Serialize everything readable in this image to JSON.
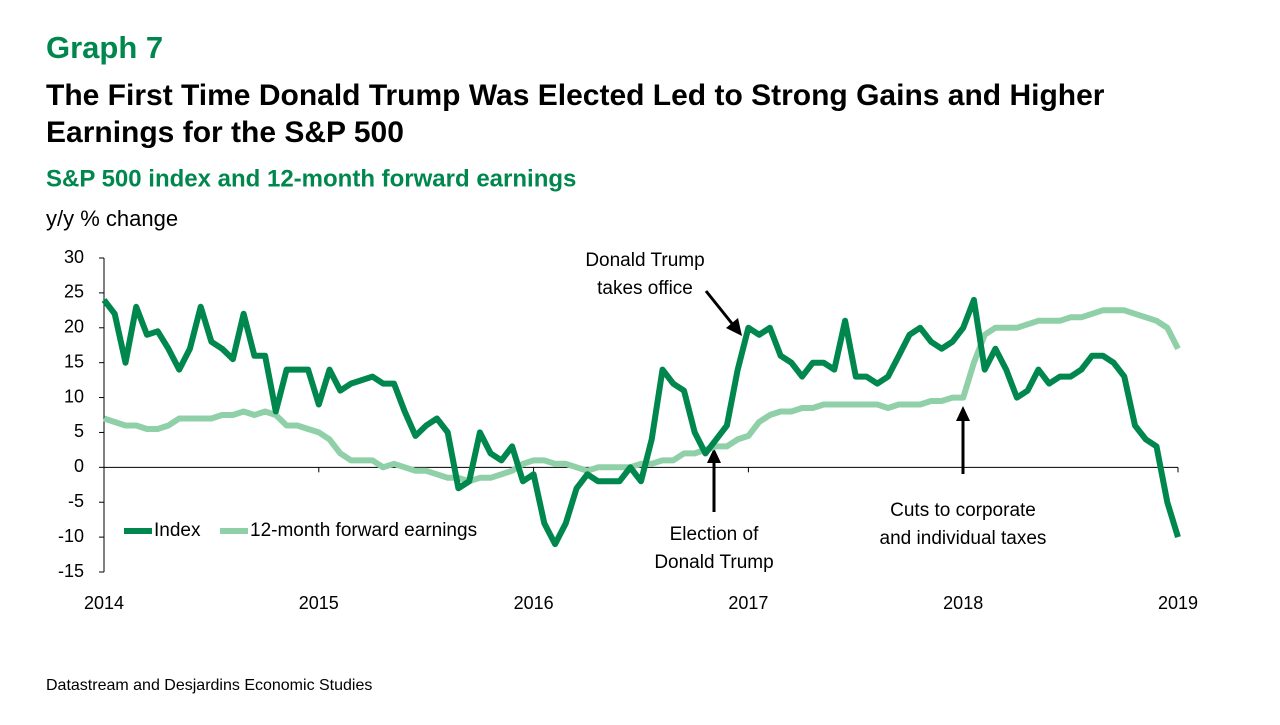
{
  "chart_data": {
    "type": "line",
    "label": "Graph 7",
    "title": [
      "The First Time Donald Trump Was Elected Led to Strong Gains and Higher",
      "Earnings for the S&P 500"
    ],
    "subtitle": "S&P 500 index and 12-month forward earnings",
    "ylabel": "y/y % change",
    "source": "Datastream and Desjardins Economic Studies",
    "x": [
      2014.0,
      2014.05,
      2014.1,
      2014.15,
      2014.2,
      2014.25,
      2014.3,
      2014.35,
      2014.4,
      2014.45,
      2014.5,
      2014.55,
      2014.6,
      2014.65,
      2014.7,
      2014.75,
      2014.8,
      2014.85,
      2014.9,
      2014.95,
      2015.0,
      2015.05,
      2015.1,
      2015.15,
      2015.2,
      2015.25,
      2015.3,
      2015.35,
      2015.4,
      2015.45,
      2015.5,
      2015.55,
      2015.6,
      2015.65,
      2015.7,
      2015.75,
      2015.8,
      2015.85,
      2015.9,
      2015.95,
      2016.0,
      2016.05,
      2016.1,
      2016.15,
      2016.2,
      2016.25,
      2016.3,
      2016.35,
      2016.4,
      2016.45,
      2016.5,
      2016.55,
      2016.6,
      2016.65,
      2016.7,
      2016.75,
      2016.8,
      2016.85,
      2016.9,
      2016.95,
      2017.0,
      2017.05,
      2017.1,
      2017.15,
      2017.2,
      2017.25,
      2017.3,
      2017.35,
      2017.4,
      2017.45,
      2017.5,
      2017.55,
      2017.6,
      2017.65,
      2017.7,
      2017.75,
      2017.8,
      2017.85,
      2017.9,
      2017.95,
      2018.0,
      2018.05,
      2018.1,
      2018.15,
      2018.2,
      2018.25,
      2018.3,
      2018.35,
      2018.4,
      2018.45,
      2018.5,
      2018.55,
      2018.6,
      2018.65,
      2018.7,
      2018.75,
      2018.8,
      2018.85,
      2018.9,
      2018.95,
      2019.0
    ],
    "series": [
      {
        "name": "Index",
        "color": "#00874e",
        "values": [
          24,
          22,
          15,
          23,
          19,
          19.5,
          17,
          14,
          17,
          23,
          18,
          17,
          15.5,
          22,
          16,
          16,
          8,
          14,
          14,
          14,
          9,
          14,
          11,
          12,
          12.5,
          13,
          12,
          12,
          8,
          4.5,
          6,
          7,
          5,
          -3,
          -2,
          5,
          2,
          1,
          3,
          -2,
          -1,
          -8,
          -11,
          -8,
          -3,
          -1,
          -2,
          -2,
          -2,
          0,
          -2,
          4,
          14,
          12,
          11,
          5,
          2,
          4,
          6,
          14,
          20,
          19,
          20,
          16,
          15,
          13,
          15,
          15,
          14,
          21,
          13,
          13,
          12,
          13,
          16,
          19,
          20,
          18,
          17,
          18,
          20,
          24,
          14,
          17,
          14,
          10,
          11,
          14,
          12,
          13,
          13,
          14,
          16,
          16,
          15,
          13,
          6,
          4,
          3,
          -5,
          -10
        ]
      },
      {
        "name": "12-month forward earnings",
        "color": "#8fd0a8",
        "values": [
          7,
          6.5,
          6,
          6,
          5.5,
          5.5,
          6,
          7,
          7,
          7,
          7,
          7.5,
          7.5,
          8,
          7.5,
          8,
          7.5,
          6,
          6,
          5.5,
          5,
          4,
          2,
          1,
          1,
          1,
          0,
          0.5,
          0,
          -0.5,
          -0.5,
          -1,
          -1.5,
          -1.5,
          -2,
          -1.5,
          -1.5,
          -1,
          -0.5,
          0.5,
          1,
          1,
          0.5,
          0.5,
          0,
          -0.5,
          0,
          0,
          0,
          0,
          0.5,
          0.5,
          1,
          1,
          2,
          2,
          2.5,
          3,
          3,
          4,
          4.5,
          6.5,
          7.5,
          8,
          8,
          8.5,
          8.5,
          9,
          9,
          9,
          9,
          9,
          9,
          8.5,
          9,
          9,
          9,
          9.5,
          9.5,
          10,
          10,
          15,
          19,
          20,
          20,
          20,
          20.5,
          21,
          21,
          21,
          21.5,
          21.5,
          22,
          22.5,
          22.5,
          22.5,
          22,
          21.5,
          21,
          20,
          17
        ]
      }
    ],
    "xlim": [
      2014,
      2019
    ],
    "xticks": [
      2014,
      2015,
      2016,
      2017,
      2018,
      2019
    ],
    "ylim": [
      -15,
      30
    ],
    "yticks": [
      -15,
      -10,
      -5,
      0,
      5,
      10,
      15,
      20,
      25,
      30
    ],
    "annotations": [
      [
        "Donald Trump",
        "takes office"
      ],
      [
        "Election of",
        "Donald Trump"
      ],
      [
        "Cuts to corporate",
        "and individual taxes"
      ]
    ]
  }
}
